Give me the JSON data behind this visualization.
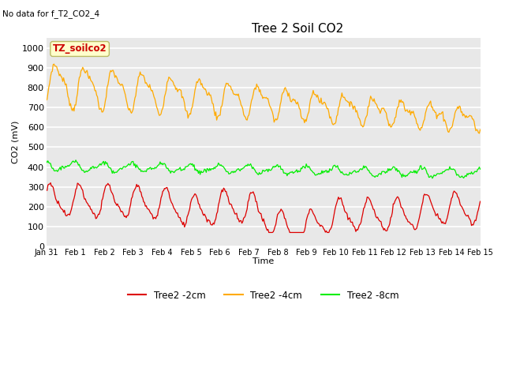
{
  "title": "Tree 2 Soil CO2",
  "subtitle": "No data for f_T2_CO2_4",
  "xlabel": "Time",
  "ylabel": "CO2 (mV)",
  "ylim": [
    0,
    1050
  ],
  "yticks": [
    0,
    100,
    200,
    300,
    400,
    500,
    600,
    700,
    800,
    900,
    1000
  ],
  "xtick_labels": [
    "Jan 31",
    "Feb 1",
    "Feb 2",
    "Feb 3",
    "Feb 4",
    "Feb 5",
    "Feb 6",
    "Feb 7",
    "Feb 8",
    "Feb 9",
    "Feb 10",
    "Feb 11",
    "Feb 12",
    "Feb 13",
    "Feb 14",
    "Feb 15"
  ],
  "legend_label_2cm": "Tree2 -2cm",
  "legend_label_4cm": "Tree2 -4cm",
  "legend_label_8cm": "Tree2 -8cm",
  "color_2cm": "#dd0000",
  "color_4cm": "#ffaa00",
  "color_8cm": "#00ee00",
  "annotation_text": "TZ_soilco2",
  "annotation_color": "#cc0000",
  "annotation_bg": "#ffffcc",
  "bg_color": "#e8e8e8",
  "plot_bg": "#dcdcdc",
  "num_points": 500,
  "days_total": 15.0
}
